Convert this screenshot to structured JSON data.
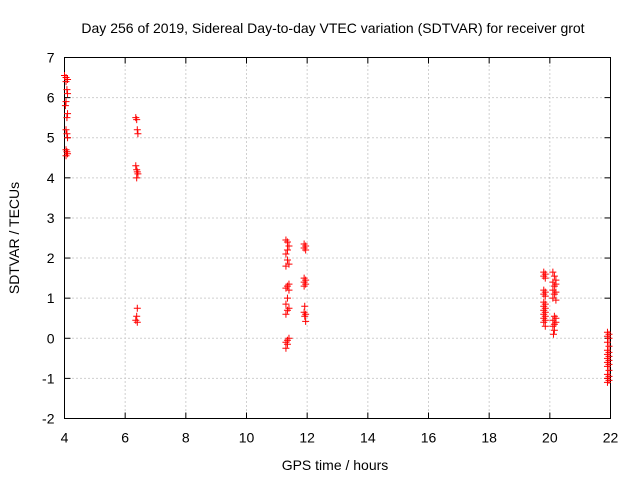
{
  "chart_data": {
    "type": "scatter",
    "title": "Day 256 of 2019, Sidereal Day-to-day VTEC variation (SDTVAR) for receiver grot",
    "xlabel": "GPS time / hours",
    "ylabel": "SDTVAR / TECUs",
    "xlim": [
      4,
      22
    ],
    "ylim": [
      -2,
      7
    ],
    "xticks": [
      "4",
      "6",
      "8",
      "10",
      "12",
      "14",
      "16",
      "18",
      "20",
      "22"
    ],
    "yticks": [
      "-2",
      "-1",
      "0",
      "1",
      "2",
      "3",
      "4",
      "5",
      "6",
      "7"
    ],
    "grid": true,
    "marker": "+",
    "color": "#ff0000",
    "series": [
      {
        "name": "SDTVAR",
        "points": [
          [
            4.0,
            6.55
          ],
          [
            4.05,
            6.5
          ],
          [
            4.1,
            6.45
          ],
          [
            4.05,
            6.4
          ],
          [
            4.08,
            6.2
          ],
          [
            4.1,
            6.1
          ],
          [
            4.05,
            5.9
          ],
          [
            4.03,
            5.8
          ],
          [
            4.1,
            5.6
          ],
          [
            4.08,
            5.5
          ],
          [
            4.05,
            5.2
          ],
          [
            4.08,
            5.1
          ],
          [
            4.1,
            5.0
          ],
          [
            4.05,
            4.7
          ],
          [
            4.08,
            4.65
          ],
          [
            4.1,
            4.6
          ],
          [
            4.05,
            4.55
          ],
          [
            6.35,
            5.5
          ],
          [
            6.38,
            5.45
          ],
          [
            6.4,
            5.2
          ],
          [
            6.42,
            5.1
          ],
          [
            6.35,
            4.3
          ],
          [
            6.38,
            4.2
          ],
          [
            6.4,
            4.15
          ],
          [
            6.42,
            4.1
          ],
          [
            6.38,
            4.0
          ],
          [
            6.4,
            0.75
          ],
          [
            6.38,
            0.55
          ],
          [
            6.35,
            0.45
          ],
          [
            6.4,
            0.4
          ],
          [
            11.3,
            2.45
          ],
          [
            11.35,
            2.4
          ],
          [
            11.4,
            2.3
          ],
          [
            11.35,
            2.2
          ],
          [
            11.3,
            2.1
          ],
          [
            11.35,
            1.95
          ],
          [
            11.4,
            1.85
          ],
          [
            11.3,
            1.8
          ],
          [
            11.4,
            1.35
          ],
          [
            11.35,
            1.3
          ],
          [
            11.3,
            1.25
          ],
          [
            11.4,
            1.2
          ],
          [
            11.35,
            1.0
          ],
          [
            11.3,
            0.85
          ],
          [
            11.4,
            0.75
          ],
          [
            11.35,
            0.7
          ],
          [
            11.3,
            0.6
          ],
          [
            11.4,
            0.0
          ],
          [
            11.35,
            -0.05
          ],
          [
            11.3,
            -0.1
          ],
          [
            11.35,
            -0.15
          ],
          [
            11.3,
            -0.25
          ],
          [
            11.9,
            2.35
          ],
          [
            11.95,
            2.3
          ],
          [
            11.9,
            2.25
          ],
          [
            11.95,
            2.2
          ],
          [
            11.9,
            1.5
          ],
          [
            11.95,
            1.45
          ],
          [
            11.9,
            1.4
          ],
          [
            11.95,
            1.35
          ],
          [
            11.9,
            1.3
          ],
          [
            11.92,
            0.8
          ],
          [
            11.9,
            0.65
          ],
          [
            11.95,
            0.6
          ],
          [
            11.92,
            0.55
          ],
          [
            11.95,
            0.42
          ],
          [
            19.8,
            1.65
          ],
          [
            19.85,
            1.6
          ],
          [
            19.8,
            1.55
          ],
          [
            19.85,
            1.5
          ],
          [
            19.8,
            1.2
          ],
          [
            19.85,
            1.15
          ],
          [
            19.8,
            1.1
          ],
          [
            19.85,
            1.05
          ],
          [
            19.8,
            0.9
          ],
          [
            19.85,
            0.85
          ],
          [
            19.8,
            0.8
          ],
          [
            19.85,
            0.75
          ],
          [
            19.8,
            0.7
          ],
          [
            19.85,
            0.65
          ],
          [
            19.8,
            0.6
          ],
          [
            19.85,
            0.55
          ],
          [
            19.8,
            0.5
          ],
          [
            19.85,
            0.45
          ],
          [
            19.8,
            0.4
          ],
          [
            19.85,
            0.3
          ],
          [
            20.1,
            1.65
          ],
          [
            20.15,
            1.55
          ],
          [
            20.2,
            1.45
          ],
          [
            20.1,
            1.4
          ],
          [
            20.2,
            1.35
          ],
          [
            20.15,
            1.3
          ],
          [
            20.1,
            1.2
          ],
          [
            20.2,
            1.15
          ],
          [
            20.15,
            1.1
          ],
          [
            20.1,
            1.0
          ],
          [
            20.2,
            0.95
          ],
          [
            20.15,
            0.55
          ],
          [
            20.2,
            0.5
          ],
          [
            20.1,
            0.45
          ],
          [
            20.2,
            0.4
          ],
          [
            20.15,
            0.35
          ],
          [
            20.1,
            0.3
          ],
          [
            20.15,
            0.2
          ],
          [
            20.12,
            0.1
          ],
          [
            21.9,
            0.15
          ],
          [
            21.95,
            0.1
          ],
          [
            21.9,
            0.05
          ],
          [
            21.95,
            0.0
          ],
          [
            21.9,
            -0.1
          ],
          [
            21.95,
            -0.2
          ],
          [
            21.9,
            -0.3
          ],
          [
            21.95,
            -0.35
          ],
          [
            21.9,
            -0.4
          ],
          [
            21.95,
            -0.45
          ],
          [
            21.9,
            -0.5
          ],
          [
            21.95,
            -0.55
          ],
          [
            21.9,
            -0.6
          ],
          [
            21.95,
            -0.65
          ],
          [
            21.9,
            -0.7
          ],
          [
            21.95,
            -0.8
          ],
          [
            21.9,
            -0.9
          ],
          [
            21.95,
            -0.95
          ],
          [
            21.9,
            -1.0
          ],
          [
            21.95,
            -1.05
          ],
          [
            21.9,
            -1.1
          ]
        ]
      }
    ]
  }
}
